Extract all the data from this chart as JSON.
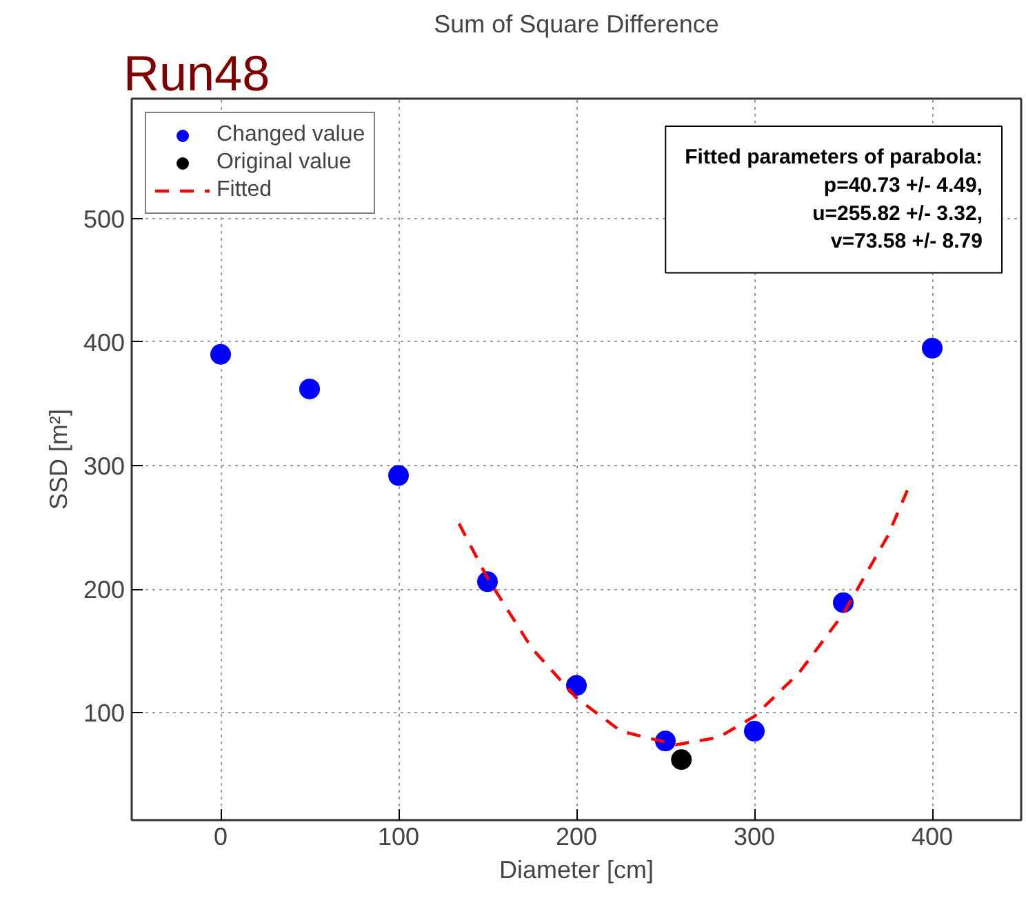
{
  "chart_data": {
    "type": "scatter",
    "title": "Sum of Square Difference",
    "xlabel": "Diameter [cm]",
    "ylabel": "SSD [m²]",
    "xlim": [
      -50,
      450
    ],
    "ylim": [
      13,
      597
    ],
    "xticks": [
      0,
      100,
      200,
      300,
      400
    ],
    "yticks": [
      100,
      200,
      300,
      400,
      500
    ],
    "grid": true,
    "legend": "top left",
    "marker": "circle",
    "annotations": [
      "Run48",
      "Fitted parameters of parabola:\np=40.73 +/- 4.49,\nu=255.82 +/- 3.32,\nv=73.58 +/- 8.79"
    ],
    "series": [
      {
        "name": "Changed value",
        "color": "#0000ff",
        "x": [
          0,
          50,
          100,
          150,
          200,
          250,
          300,
          350,
          400
        ],
        "values": [
          390,
          362,
          292,
          206,
          122,
          77,
          85,
          189,
          395
        ]
      },
      {
        "name": "Original value",
        "color": "#000000",
        "x": [
          259
        ],
        "values": [
          62
        ]
      },
      {
        "name": "Fitted",
        "color": "#ff0000",
        "type": "line",
        "line_style": "dashed",
        "marker": "none",
        "x": [
          134,
          150,
          175,
          200,
          225,
          256,
          280,
          300,
          325,
          350,
          375,
          386
        ],
        "values": [
          253,
          209,
          152,
          112,
          85,
          74,
          80,
          97,
          132,
          180,
          243,
          280
        ]
      }
    ]
  }
}
